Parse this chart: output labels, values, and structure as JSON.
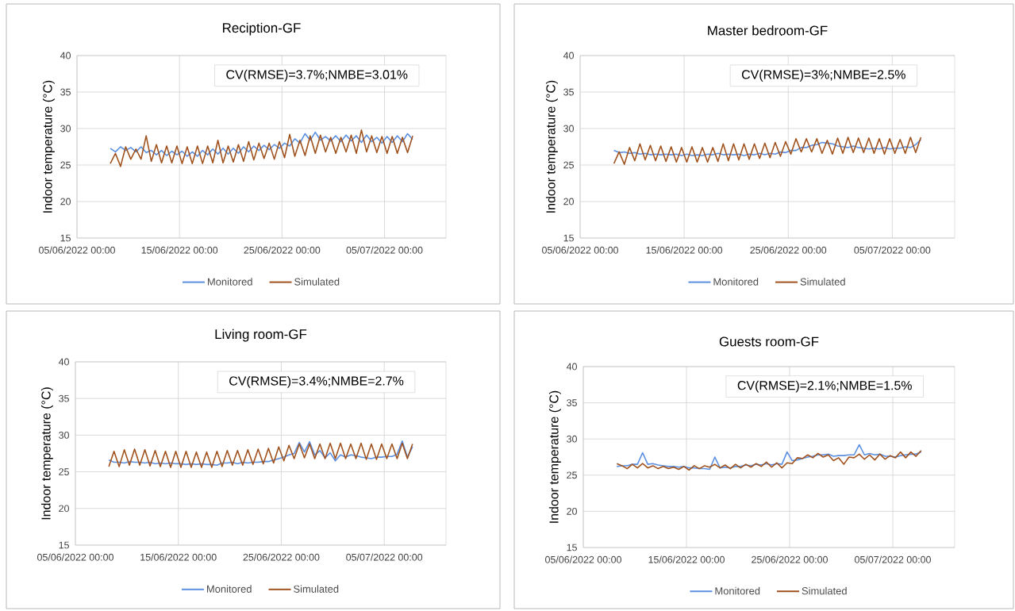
{
  "chart_data": [
    {
      "type": "line",
      "title": "Reciption-GF",
      "ylabel": "Indoor temperature (°C)",
      "annotations": [
        "CV(RMSE)=3.7%;NMBE=3.01%"
      ],
      "x": [
        "2022-06-08T06:00",
        "2022-06-08T18:00",
        "2022-06-09T06:00",
        "2022-06-09T18:00",
        "2022-06-10T06:00",
        "2022-06-10T18:00",
        "2022-06-11T06:00",
        "2022-06-11T18:00",
        "2022-06-12T06:00",
        "2022-06-12T18:00",
        "2022-06-13T06:00",
        "2022-06-13T18:00",
        "2022-06-14T06:00",
        "2022-06-14T18:00",
        "2022-06-15T06:00",
        "2022-06-15T18:00",
        "2022-06-16T06:00",
        "2022-06-16T18:00",
        "2022-06-17T06:00",
        "2022-06-17T18:00",
        "2022-06-18T06:00",
        "2022-06-18T18:00",
        "2022-06-19T06:00",
        "2022-06-19T18:00",
        "2022-06-20T06:00",
        "2022-06-20T18:00",
        "2022-06-21T06:00",
        "2022-06-21T18:00",
        "2022-06-22T06:00",
        "2022-06-22T18:00",
        "2022-06-23T06:00",
        "2022-06-23T18:00",
        "2022-06-24T06:00",
        "2022-06-24T18:00",
        "2022-06-25T06:00",
        "2022-06-25T18:00",
        "2022-06-26T06:00",
        "2022-06-26T18:00",
        "2022-06-27T06:00",
        "2022-06-27T18:00",
        "2022-06-28T06:00",
        "2022-06-28T18:00",
        "2022-06-29T06:00",
        "2022-06-29T18:00",
        "2022-06-30T06:00",
        "2022-06-30T18:00",
        "2022-07-01T06:00",
        "2022-07-01T18:00",
        "2022-07-02T06:00",
        "2022-07-02T18:00",
        "2022-07-03T06:00",
        "2022-07-03T18:00",
        "2022-07-04T06:00",
        "2022-07-04T18:00",
        "2022-07-05T06:00",
        "2022-07-05T18:00",
        "2022-07-06T06:00",
        "2022-07-06T18:00",
        "2022-07-07T06:00",
        "2022-07-07T18:00"
      ],
      "series": [
        {
          "name": "Monitored",
          "color": "#5b8fe0",
          "values": [
            27.3,
            26.8,
            27.5,
            27.0,
            27.4,
            26.8,
            27.5,
            26.7,
            27.0,
            26.4,
            27.0,
            26.3,
            26.9,
            26.4,
            26.9,
            26.2,
            26.8,
            26.2,
            27.0,
            26.4,
            27.2,
            26.5,
            27.3,
            26.5,
            27.3,
            26.6,
            27.5,
            26.8,
            27.6,
            27.0,
            27.7,
            27.1,
            27.8,
            27.3,
            28.0,
            27.6,
            28.6,
            28.0,
            29.3,
            28.4,
            29.5,
            28.4,
            28.9,
            28.3,
            29.0,
            28.2,
            29.1,
            28.3,
            29.0,
            28.1,
            29.1,
            28.2,
            28.8,
            28.0,
            28.9,
            28.1,
            29.0,
            28.2,
            29.3,
            28.5
          ]
        },
        {
          "name": "Simulated",
          "color": "#a0521e",
          "values": [
            25.2,
            26.6,
            24.8,
            27.5,
            25.8,
            27.2,
            25.8,
            29.0,
            25.5,
            27.8,
            25.3,
            27.6,
            25.3,
            27.6,
            25.2,
            27.5,
            25.2,
            27.6,
            25.2,
            27.6,
            25.3,
            28.4,
            25.3,
            27.6,
            25.4,
            27.8,
            25.5,
            28.2,
            25.7,
            28.0,
            25.9,
            28.0,
            25.8,
            28.2,
            26.0,
            29.2,
            26.2,
            28.4,
            26.3,
            29.0,
            26.6,
            29.1,
            26.8,
            28.8,
            26.6,
            28.8,
            26.8,
            29.1,
            26.6,
            29.8,
            26.8,
            29.0,
            26.7,
            28.9,
            26.6,
            28.9,
            26.6,
            28.8,
            26.7,
            29.0
          ]
        }
      ],
      "xlim": [
        "2022-06-05T00:00",
        "2022-07-11T00:00"
      ],
      "xticks": [
        {
          "value": "2022-06-05T00:00",
          "label": "05/06/2022 00:00"
        },
        {
          "value": "2022-06-15T00:00",
          "label": "15/06/2022 00:00"
        },
        {
          "value": "2022-06-25T00:00",
          "label": "25/06/2022 00:00"
        },
        {
          "value": "2022-07-05T00:00",
          "label": "05/07/2022 00:00"
        }
      ],
      "ylim": [
        15,
        40
      ],
      "yticks": [
        15,
        20,
        25,
        30,
        35,
        40
      ],
      "grid": true,
      "legend": "bottom"
    },
    {
      "type": "line",
      "title": "Master bedroom-GF",
      "ylabel": "Indoor temperature (°C)",
      "annotations": [
        "CV(RMSE)=3%;NMBE=2.5%"
      ],
      "x": [
        "2022-06-08T06:00",
        "2022-06-08T18:00",
        "2022-06-09T06:00",
        "2022-06-09T18:00",
        "2022-06-10T06:00",
        "2022-06-10T18:00",
        "2022-06-11T06:00",
        "2022-06-11T18:00",
        "2022-06-12T06:00",
        "2022-06-12T18:00",
        "2022-06-13T06:00",
        "2022-06-13T18:00",
        "2022-06-14T06:00",
        "2022-06-14T18:00",
        "2022-06-15T06:00",
        "2022-06-15T18:00",
        "2022-06-16T06:00",
        "2022-06-16T18:00",
        "2022-06-17T06:00",
        "2022-06-17T18:00",
        "2022-06-18T06:00",
        "2022-06-18T18:00",
        "2022-06-19T06:00",
        "2022-06-19T18:00",
        "2022-06-20T06:00",
        "2022-06-20T18:00",
        "2022-06-21T06:00",
        "2022-06-21T18:00",
        "2022-06-22T06:00",
        "2022-06-22T18:00",
        "2022-06-23T06:00",
        "2022-06-23T18:00",
        "2022-06-24T06:00",
        "2022-06-24T18:00",
        "2022-06-25T06:00",
        "2022-06-25T18:00",
        "2022-06-26T06:00",
        "2022-06-26T18:00",
        "2022-06-27T06:00",
        "2022-06-27T18:00",
        "2022-06-28T06:00",
        "2022-06-28T18:00",
        "2022-06-29T06:00",
        "2022-06-29T18:00",
        "2022-06-30T06:00",
        "2022-06-30T18:00",
        "2022-07-01T06:00",
        "2022-07-01T18:00",
        "2022-07-02T06:00",
        "2022-07-02T18:00",
        "2022-07-03T06:00",
        "2022-07-03T18:00",
        "2022-07-04T06:00",
        "2022-07-04T18:00",
        "2022-07-05T06:00",
        "2022-07-05T18:00",
        "2022-07-06T06:00",
        "2022-07-06T18:00",
        "2022-07-07T06:00",
        "2022-07-07T18:00"
      ],
      "series": [
        {
          "name": "Monitored",
          "color": "#5b8fe0",
          "values": [
            27.0,
            26.7,
            26.8,
            26.6,
            26.7,
            26.5,
            26.6,
            26.4,
            26.5,
            26.4,
            26.5,
            26.4,
            26.5,
            26.3,
            26.5,
            26.3,
            26.4,
            26.3,
            26.5,
            26.4,
            26.6,
            26.4,
            26.5,
            26.4,
            26.5,
            26.3,
            26.5,
            26.4,
            26.6,
            26.4,
            26.6,
            26.5,
            26.8,
            26.7,
            27.0,
            27.0,
            27.4,
            27.4,
            27.7,
            27.8,
            28.1,
            28.0,
            27.9,
            27.6,
            27.5,
            27.4,
            27.6,
            27.4,
            27.3,
            27.2,
            27.3,
            27.2,
            27.4,
            27.2,
            27.3,
            27.3,
            27.5,
            27.4,
            27.8,
            28.5
          ]
        },
        {
          "name": "Simulated",
          "color": "#a0521e",
          "values": [
            25.2,
            26.8,
            25.1,
            27.4,
            25.6,
            27.9,
            25.7,
            27.7,
            25.6,
            27.6,
            25.5,
            27.5,
            25.4,
            27.4,
            25.4,
            27.5,
            25.4,
            27.4,
            25.4,
            27.4,
            25.5,
            27.9,
            25.6,
            27.9,
            25.7,
            27.9,
            25.8,
            27.9,
            25.9,
            28.0,
            26.0,
            28.1,
            26.2,
            28.2,
            26.5,
            28.6,
            26.8,
            28.6,
            26.8,
            28.6,
            26.6,
            28.4,
            26.5,
            28.7,
            26.6,
            28.8,
            26.7,
            28.7,
            26.7,
            28.7,
            26.6,
            28.6,
            26.5,
            28.6,
            26.6,
            28.5,
            26.6,
            28.8,
            26.7,
            28.8
          ]
        }
      ],
      "xlim": [
        "2022-06-05T00:00",
        "2022-07-11T00:00"
      ],
      "xticks": [
        {
          "value": "2022-06-05T00:00",
          "label": "05/06/2022 00:00"
        },
        {
          "value": "2022-06-15T00:00",
          "label": "15/06/2022 00:00"
        },
        {
          "value": "2022-06-25T00:00",
          "label": "25/06/2022 00:00"
        },
        {
          "value": "2022-07-05T00:00",
          "label": "05/07/2022 00:00"
        }
      ],
      "ylim": [
        15,
        40
      ],
      "yticks": [
        15,
        20,
        25,
        30,
        35,
        40
      ],
      "grid": true,
      "legend": "bottom"
    },
    {
      "type": "line",
      "title": "Living room-GF",
      "ylabel": "Indoor temperature (°C)",
      "annotations": [
        "CV(RMSE)=3.4%;NMBE=2.7%"
      ],
      "x": [
        "2022-06-08T06:00",
        "2022-06-08T18:00",
        "2022-06-09T06:00",
        "2022-06-09T18:00",
        "2022-06-10T06:00",
        "2022-06-10T18:00",
        "2022-06-11T06:00",
        "2022-06-11T18:00",
        "2022-06-12T06:00",
        "2022-06-12T18:00",
        "2022-06-13T06:00",
        "2022-06-13T18:00",
        "2022-06-14T06:00",
        "2022-06-14T18:00",
        "2022-06-15T06:00",
        "2022-06-15T18:00",
        "2022-06-16T06:00",
        "2022-06-16T18:00",
        "2022-06-17T06:00",
        "2022-06-17T18:00",
        "2022-06-18T06:00",
        "2022-06-18T18:00",
        "2022-06-19T06:00",
        "2022-06-19T18:00",
        "2022-06-20T06:00",
        "2022-06-20T18:00",
        "2022-06-21T06:00",
        "2022-06-21T18:00",
        "2022-06-22T06:00",
        "2022-06-22T18:00",
        "2022-06-23T06:00",
        "2022-06-23T18:00",
        "2022-06-24T06:00",
        "2022-06-24T18:00",
        "2022-06-25T06:00",
        "2022-06-25T18:00",
        "2022-06-26T06:00",
        "2022-06-26T18:00",
        "2022-06-27T06:00",
        "2022-06-27T18:00",
        "2022-06-28T06:00",
        "2022-06-28T18:00",
        "2022-06-29T06:00",
        "2022-06-29T18:00",
        "2022-06-30T06:00",
        "2022-06-30T18:00",
        "2022-07-01T06:00",
        "2022-07-01T18:00",
        "2022-07-02T06:00",
        "2022-07-02T18:00",
        "2022-07-03T06:00",
        "2022-07-03T18:00",
        "2022-07-04T06:00",
        "2022-07-04T18:00",
        "2022-07-05T06:00",
        "2022-07-05T18:00",
        "2022-07-06T06:00",
        "2022-07-06T18:00",
        "2022-07-07T06:00",
        "2022-07-07T18:00"
      ],
      "series": [
        {
          "name": "Monitored",
          "color": "#5b8fe0",
          "values": [
            26.6,
            26.3,
            26.3,
            26.2,
            26.4,
            26.3,
            26.3,
            26.2,
            26.3,
            26.1,
            26.2,
            26.1,
            26.2,
            26.1,
            26.1,
            26.0,
            26.1,
            26.0,
            26.1,
            26.0,
            26.0,
            25.9,
            26.2,
            26.2,
            26.3,
            26.1,
            26.3,
            26.2,
            26.3,
            26.3,
            26.4,
            26.4,
            26.6,
            26.8,
            27.0,
            27.3,
            27.5,
            29.0,
            27.7,
            29.1,
            27.3,
            27.9,
            26.9,
            27.6,
            26.5,
            27.3,
            27.0,
            27.3,
            27.2,
            27.0,
            26.9,
            26.8,
            27.0,
            27.0,
            27.1,
            27.1,
            27.4,
            29.2,
            27.0,
            28.4
          ]
        },
        {
          "name": "Simulated",
          "color": "#a0521e",
          "values": [
            25.7,
            27.8,
            25.7,
            28.0,
            25.9,
            28.1,
            25.9,
            28.0,
            25.8,
            27.9,
            25.7,
            27.8,
            25.6,
            27.8,
            25.6,
            27.8,
            25.6,
            27.7,
            25.6,
            27.7,
            25.6,
            27.8,
            25.7,
            27.9,
            25.9,
            27.9,
            25.9,
            28.0,
            26.0,
            28.1,
            26.1,
            28.2,
            26.2,
            28.4,
            26.5,
            28.6,
            26.8,
            28.8,
            26.9,
            28.8,
            26.8,
            28.8,
            26.8,
            28.9,
            26.8,
            28.9,
            26.8,
            28.8,
            26.8,
            28.9,
            26.7,
            28.8,
            26.7,
            28.8,
            26.8,
            28.8,
            26.8,
            28.9,
            26.8,
            28.8
          ]
        }
      ],
      "xlim": [
        "2022-06-05T00:00",
        "2022-07-11T00:00"
      ],
      "xticks": [
        {
          "value": "2022-06-05T00:00",
          "label": "05/06/2022 00:00"
        },
        {
          "value": "2022-06-15T00:00",
          "label": "15/06/2022 00:00"
        },
        {
          "value": "2022-06-25T00:00",
          "label": "25/06/2022 00:00"
        },
        {
          "value": "2022-07-05T00:00",
          "label": "05/07/2022 00:00"
        }
      ],
      "ylim": [
        15,
        40
      ],
      "yticks": [
        15,
        20,
        25,
        30,
        35,
        40
      ],
      "grid": true,
      "legend": "bottom"
    },
    {
      "type": "line",
      "title": "Guests room-GF",
      "ylabel": "Indoor temperature (°C)",
      "annotations": [
        "CV(RMSE)=2.1%;NMBE=1.5%"
      ],
      "x": [
        "2022-06-08T06:00",
        "2022-06-08T18:00",
        "2022-06-09T06:00",
        "2022-06-09T18:00",
        "2022-06-10T06:00",
        "2022-06-10T18:00",
        "2022-06-11T06:00",
        "2022-06-11T18:00",
        "2022-06-12T06:00",
        "2022-06-12T18:00",
        "2022-06-13T06:00",
        "2022-06-13T18:00",
        "2022-06-14T06:00",
        "2022-06-14T18:00",
        "2022-06-15T06:00",
        "2022-06-15T18:00",
        "2022-06-16T06:00",
        "2022-06-16T18:00",
        "2022-06-17T06:00",
        "2022-06-17T18:00",
        "2022-06-18T06:00",
        "2022-06-18T18:00",
        "2022-06-19T06:00",
        "2022-06-19T18:00",
        "2022-06-20T06:00",
        "2022-06-20T18:00",
        "2022-06-21T06:00",
        "2022-06-21T18:00",
        "2022-06-22T06:00",
        "2022-06-22T18:00",
        "2022-06-23T06:00",
        "2022-06-23T18:00",
        "2022-06-24T06:00",
        "2022-06-24T18:00",
        "2022-06-25T06:00",
        "2022-06-25T18:00",
        "2022-06-26T06:00",
        "2022-06-26T18:00",
        "2022-06-27T06:00",
        "2022-06-27T18:00",
        "2022-06-28T06:00",
        "2022-06-28T18:00",
        "2022-06-29T06:00",
        "2022-06-29T18:00",
        "2022-06-30T06:00",
        "2022-06-30T18:00",
        "2022-07-01T06:00",
        "2022-07-01T18:00",
        "2022-07-02T06:00",
        "2022-07-02T18:00",
        "2022-07-03T06:00",
        "2022-07-03T18:00",
        "2022-07-04T06:00",
        "2022-07-04T18:00",
        "2022-07-05T06:00",
        "2022-07-05T18:00",
        "2022-07-06T06:00",
        "2022-07-06T18:00",
        "2022-07-07T06:00",
        "2022-07-07T18:00"
      ],
      "series": [
        {
          "name": "Monitored",
          "color": "#5b8fe0",
          "values": [
            26.2,
            26.3,
            26.3,
            26.5,
            26.5,
            28.1,
            26.5,
            26.6,
            26.4,
            26.3,
            26.2,
            26.2,
            26.1,
            26.2,
            26.0,
            26.0,
            25.9,
            25.9,
            25.8,
            27.5,
            26.0,
            26.1,
            26.0,
            26.2,
            26.2,
            26.4,
            26.3,
            26.5,
            26.4,
            26.6,
            26.4,
            26.6,
            26.5,
            28.2,
            27.0,
            27.1,
            27.3,
            27.5,
            27.6,
            27.8,
            27.8,
            27.9,
            27.6,
            27.7,
            27.7,
            27.8,
            27.8,
            29.2,
            27.8,
            28.0,
            27.8,
            27.9,
            27.6,
            27.6,
            27.5,
            27.7,
            27.8,
            27.9,
            27.9,
            28.2
          ]
        },
        {
          "name": "Simulated",
          "color": "#a0521e",
          "values": [
            26.6,
            26.3,
            25.9,
            26.5,
            26.0,
            26.6,
            26.0,
            26.3,
            25.9,
            26.2,
            25.9,
            26.1,
            25.8,
            26.2,
            25.7,
            26.3,
            25.9,
            26.3,
            26.1,
            26.5,
            26.0,
            26.4,
            25.9,
            26.5,
            26.0,
            26.5,
            26.1,
            26.6,
            26.2,
            26.8,
            26.1,
            26.7,
            26.0,
            26.7,
            26.6,
            27.4,
            27.3,
            27.8,
            27.4,
            28.0,
            27.5,
            27.8,
            27.0,
            27.4,
            26.5,
            27.5,
            27.4,
            27.9,
            27.2,
            27.8,
            27.1,
            27.9,
            27.2,
            27.7,
            27.4,
            28.2,
            27.4,
            28.2,
            27.6,
            28.4
          ]
        }
      ],
      "xlim": [
        "2022-06-05T00:00",
        "2022-07-11T00:00"
      ],
      "xticks": [
        {
          "value": "2022-06-05T00:00",
          "label": "05/06/2022 00:00"
        },
        {
          "value": "2022-06-15T00:00",
          "label": "15/06/2022 00:00"
        },
        {
          "value": "2022-06-25T00:00",
          "label": "25/06/2022 00:00"
        },
        {
          "value": "2022-07-05T00:00",
          "label": "05/07/2022 00:00"
        }
      ],
      "ylim": [
        15,
        40
      ],
      "yticks": [
        15,
        20,
        25,
        30,
        35,
        40
      ],
      "grid": true,
      "legend": "bottom"
    }
  ]
}
